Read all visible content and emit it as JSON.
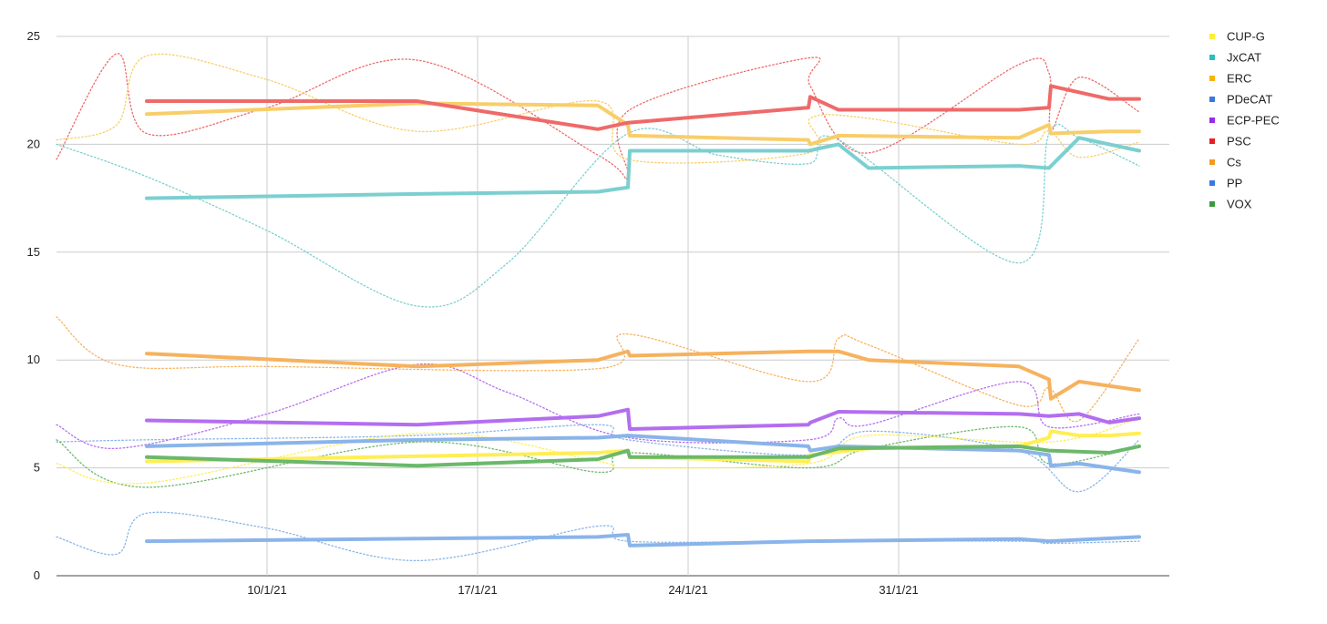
{
  "chart_data": {
    "type": "line",
    "title": "",
    "xlabel": "",
    "ylabel": "",
    "xlim": [
      "2021-01-03",
      "2021-02-09"
    ],
    "ylim": [
      0,
      25
    ],
    "yticks": [
      0,
      5,
      10,
      15,
      20,
      25
    ],
    "xticks": [
      {
        "date": "2021-01-10",
        "label": "10/1/21"
      },
      {
        "date": "2021-01-17",
        "label": "17/1/21"
      },
      {
        "date": "2021-01-24",
        "label": "24/1/21"
      },
      {
        "date": "2021-01-31",
        "label": "31/1/21"
      }
    ],
    "grid": true,
    "legend_position": "right",
    "series": [
      {
        "name": "CUP-G",
        "color": "#ffee55",
        "values": [
          [
            "2021-01-06",
            5.3
          ],
          [
            "2021-01-21",
            5.7
          ],
          [
            "2021-01-22",
            5.8
          ],
          [
            "2021-01-22",
            5.5
          ],
          [
            "2021-01-28",
            5.3
          ],
          [
            "2021-01-28",
            5.6
          ],
          [
            "2021-01-30",
            5.9
          ],
          [
            "2021-02-04",
            6.0
          ],
          [
            "2021-02-05",
            6.4
          ],
          [
            "2021-02-05",
            6.7
          ],
          [
            "2021-02-06",
            6.5
          ],
          [
            "2021-02-07",
            6.5
          ],
          [
            "2021-02-08",
            6.6
          ]
        ]
      },
      {
        "name": "JxCAT",
        "color": "#7ccfd0",
        "values": [
          [
            "2021-01-06",
            17.5
          ],
          [
            "2021-01-15",
            17.7
          ],
          [
            "2021-01-21",
            17.8
          ],
          [
            "2021-01-22",
            18.0
          ],
          [
            "2021-01-22",
            19.7
          ],
          [
            "2021-01-25",
            19.7
          ],
          [
            "2021-01-28",
            19.7
          ],
          [
            "2021-01-29",
            20.0
          ],
          [
            "2021-01-30",
            18.9
          ],
          [
            "2021-02-04",
            19.0
          ],
          [
            "2021-02-05",
            18.9
          ],
          [
            "2021-02-06",
            20.3
          ],
          [
            "2021-02-08",
            19.7
          ]
        ]
      },
      {
        "name": "ERC",
        "color": "#f8ce6a",
        "values": [
          [
            "2021-01-06",
            21.4
          ],
          [
            "2021-01-15",
            21.9
          ],
          [
            "2021-01-21",
            21.8
          ],
          [
            "2021-01-22",
            20.9
          ],
          [
            "2021-01-22",
            20.4
          ],
          [
            "2021-01-28",
            20.2
          ],
          [
            "2021-01-28",
            20.0
          ],
          [
            "2021-01-29",
            20.4
          ],
          [
            "2021-02-04",
            20.3
          ],
          [
            "2021-02-05",
            20.9
          ],
          [
            "2021-02-05",
            20.5
          ],
          [
            "2021-02-07",
            20.6
          ],
          [
            "2021-02-08",
            20.6
          ]
        ]
      },
      {
        "name": "PDeCAT",
        "color": "#8ab4ea",
        "values": [
          [
            "2021-01-06",
            1.6
          ],
          [
            "2021-01-21",
            1.8
          ],
          [
            "2021-01-22",
            1.9
          ],
          [
            "2021-01-22",
            1.4
          ],
          [
            "2021-01-28",
            1.6
          ],
          [
            "2021-02-04",
            1.7
          ],
          [
            "2021-02-05",
            1.6
          ],
          [
            "2021-02-08",
            1.8
          ]
        ]
      },
      {
        "name": "ECP-PEC",
        "color": "#b36ef0",
        "values": [
          [
            "2021-01-06",
            7.2
          ],
          [
            "2021-01-15",
            7.0
          ],
          [
            "2021-01-21",
            7.4
          ],
          [
            "2021-01-22",
            7.7
          ],
          [
            "2021-01-22",
            6.8
          ],
          [
            "2021-01-28",
            7.0
          ],
          [
            "2021-01-28",
            7.1
          ],
          [
            "2021-01-29",
            7.6
          ],
          [
            "2021-02-04",
            7.5
          ],
          [
            "2021-02-05",
            7.4
          ],
          [
            "2021-02-06",
            7.5
          ],
          [
            "2021-02-07",
            7.1
          ],
          [
            "2021-02-08",
            7.3
          ]
        ]
      },
      {
        "name": "PSC",
        "color": "#ee6a6a",
        "values": [
          [
            "2021-01-06",
            22.0
          ],
          [
            "2021-01-15",
            22.0
          ],
          [
            "2021-01-21",
            20.7
          ],
          [
            "2021-01-22",
            21.0
          ],
          [
            "2021-01-28",
            21.7
          ],
          [
            "2021-01-28",
            22.2
          ],
          [
            "2021-01-29",
            21.6
          ],
          [
            "2021-01-30",
            21.6
          ],
          [
            "2021-02-04",
            21.6
          ],
          [
            "2021-02-05",
            21.7
          ],
          [
            "2021-02-05",
            22.7
          ],
          [
            "2021-02-07",
            22.1
          ],
          [
            "2021-02-08",
            22.1
          ]
        ]
      },
      {
        "name": "Cs",
        "color": "#f6b25e",
        "values": [
          [
            "2021-01-06",
            10.3
          ],
          [
            "2021-01-15",
            9.7
          ],
          [
            "2021-01-21",
            10.0
          ],
          [
            "2021-01-22",
            10.4
          ],
          [
            "2021-01-22",
            10.2
          ],
          [
            "2021-01-28",
            10.4
          ],
          [
            "2021-01-29",
            10.4
          ],
          [
            "2021-01-30",
            10.0
          ],
          [
            "2021-02-04",
            9.7
          ],
          [
            "2021-02-05",
            9.1
          ],
          [
            "2021-02-05",
            8.2
          ],
          [
            "2021-02-06",
            9.0
          ],
          [
            "2021-02-08",
            8.6
          ]
        ]
      },
      {
        "name": "PP",
        "color": "#8ab4ea",
        "values": [
          [
            "2021-01-06",
            6.0
          ],
          [
            "2021-01-15",
            6.3
          ],
          [
            "2021-01-21",
            6.4
          ],
          [
            "2021-01-22",
            6.5
          ],
          [
            "2021-01-28",
            6.0
          ],
          [
            "2021-01-28",
            5.8
          ],
          [
            "2021-01-29",
            6.0
          ],
          [
            "2021-02-04",
            5.8
          ],
          [
            "2021-02-05",
            5.6
          ],
          [
            "2021-02-05",
            5.1
          ],
          [
            "2021-02-06",
            5.2
          ],
          [
            "2021-02-08",
            4.8
          ]
        ]
      },
      {
        "name": "VOX",
        "color": "#6bb86b",
        "values": [
          [
            "2021-01-06",
            5.5
          ],
          [
            "2021-01-15",
            5.1
          ],
          [
            "2021-01-21",
            5.4
          ],
          [
            "2021-01-22",
            5.8
          ],
          [
            "2021-01-22",
            5.5
          ],
          [
            "2021-01-28",
            5.5
          ],
          [
            "2021-01-29",
            5.9
          ],
          [
            "2021-02-04",
            6.0
          ],
          [
            "2021-02-05",
            5.8
          ],
          [
            "2021-02-07",
            5.7
          ],
          [
            "2021-02-08",
            6.0
          ]
        ]
      }
    ],
    "trendlines": [
      {
        "series": "PSC",
        "color": "#ee6a6a",
        "values": [
          [
            "2021-01-03",
            19.3
          ],
          [
            "2021-01-05",
            24.2
          ],
          [
            "2021-01-06",
            20.5
          ],
          [
            "2021-01-10",
            21.7
          ],
          [
            "2021-01-15",
            23.9
          ],
          [
            "2021-01-21",
            19.5
          ],
          [
            "2021-01-22",
            18.5
          ],
          [
            "2021-01-22",
            21.6
          ],
          [
            "2021-01-28",
            24.0
          ],
          [
            "2021-01-28",
            22.7
          ],
          [
            "2021-01-30",
            19.6
          ],
          [
            "2021-02-04",
            23.7
          ],
          [
            "2021-02-05",
            23.3
          ],
          [
            "2021-02-05",
            20.6
          ],
          [
            "2021-02-06",
            23.1
          ],
          [
            "2021-02-08",
            21.5
          ]
        ]
      },
      {
        "series": "ERC",
        "color": "#f8ce6a",
        "values": [
          [
            "2021-01-03",
            20.2
          ],
          [
            "2021-01-05",
            20.9
          ],
          [
            "2021-01-06",
            24.1
          ],
          [
            "2021-01-10",
            23.0
          ],
          [
            "2021-01-15",
            20.6
          ],
          [
            "2021-01-21",
            22.0
          ],
          [
            "2021-01-22",
            19.3
          ],
          [
            "2021-01-28",
            19.6
          ],
          [
            "2021-01-28",
            21.2
          ],
          [
            "2021-01-30",
            21.2
          ],
          [
            "2021-02-04",
            20.0
          ],
          [
            "2021-02-05",
            20.6
          ],
          [
            "2021-02-06",
            19.4
          ],
          [
            "2021-02-08",
            20.1
          ]
        ]
      },
      {
        "series": "JxCAT",
        "color": "#7ccfd0",
        "values": [
          [
            "2021-01-03",
            20.0
          ],
          [
            "2021-01-06",
            18.5
          ],
          [
            "2021-01-10",
            16.0
          ],
          [
            "2021-01-15",
            12.5
          ],
          [
            "2021-01-18",
            14.5
          ],
          [
            "2021-01-22",
            20.5
          ],
          [
            "2021-01-25",
            19.5
          ],
          [
            "2021-01-28",
            19.1
          ],
          [
            "2021-01-29",
            20.2
          ],
          [
            "2021-02-04",
            14.5
          ],
          [
            "2021-02-05",
            20.5
          ],
          [
            "2021-02-06",
            20.3
          ],
          [
            "2021-02-08",
            19.0
          ]
        ]
      },
      {
        "series": "Cs",
        "color": "#f6b25e",
        "values": [
          [
            "2021-01-03",
            12.0
          ],
          [
            "2021-01-05",
            9.8
          ],
          [
            "2021-01-10",
            9.7
          ],
          [
            "2021-01-21",
            9.6
          ],
          [
            "2021-01-22",
            11.2
          ],
          [
            "2021-01-28",
            9.0
          ],
          [
            "2021-01-29",
            11.0
          ],
          [
            "2021-01-30",
            10.7
          ],
          [
            "2021-02-04",
            7.9
          ],
          [
            "2021-02-05",
            8.7
          ],
          [
            "2021-02-06",
            7.2
          ],
          [
            "2021-02-08",
            11.0
          ]
        ]
      },
      {
        "series": "ECP-PEC",
        "color": "#b36ef0",
        "values": [
          [
            "2021-01-03",
            7.0
          ],
          [
            "2021-01-05",
            5.9
          ],
          [
            "2021-01-10",
            7.5
          ],
          [
            "2021-01-15",
            9.8
          ],
          [
            "2021-01-18",
            8.5
          ],
          [
            "2021-01-22",
            6.4
          ],
          [
            "2021-01-28",
            6.3
          ],
          [
            "2021-01-29",
            7.3
          ],
          [
            "2021-01-30",
            7.0
          ],
          [
            "2021-02-04",
            9.0
          ],
          [
            "2021-02-05",
            6.9
          ],
          [
            "2021-02-08",
            7.5
          ]
        ]
      },
      {
        "series": "PP",
        "color": "#8ab4ea",
        "values": [
          [
            "2021-01-03",
            6.2
          ],
          [
            "2021-01-06",
            6.3
          ],
          [
            "2021-01-15",
            6.5
          ],
          [
            "2021-01-21",
            7.0
          ],
          [
            "2021-01-22",
            6.3
          ],
          [
            "2021-01-28",
            5.6
          ],
          [
            "2021-01-30",
            6.7
          ],
          [
            "2021-02-04",
            5.8
          ],
          [
            "2021-02-06",
            3.9
          ],
          [
            "2021-02-08",
            6.3
          ]
        ]
      },
      {
        "series": "VOX",
        "color": "#6bb86b",
        "values": [
          [
            "2021-01-03",
            6.3
          ],
          [
            "2021-01-06",
            4.1
          ],
          [
            "2021-01-15",
            6.2
          ],
          [
            "2021-01-21",
            4.8
          ],
          [
            "2021-01-22",
            5.7
          ],
          [
            "2021-01-28",
            5.0
          ],
          [
            "2021-01-30",
            5.9
          ],
          [
            "2021-02-04",
            6.9
          ],
          [
            "2021-02-05",
            5.2
          ],
          [
            "2021-02-08",
            6.0
          ]
        ]
      },
      {
        "series": "CUP-G",
        "color": "#ffee55",
        "values": [
          [
            "2021-01-03",
            5.2
          ],
          [
            "2021-01-06",
            4.3
          ],
          [
            "2021-01-15",
            6.6
          ],
          [
            "2021-01-21",
            5.3
          ],
          [
            "2021-01-22",
            5.0
          ],
          [
            "2021-01-28",
            5.2
          ],
          [
            "2021-01-30",
            6.5
          ],
          [
            "2021-02-05",
            6.2
          ],
          [
            "2021-02-08",
            7.3
          ]
        ]
      },
      {
        "series": "PDeCAT",
        "color": "#8ab4ea",
        "values": [
          [
            "2021-01-03",
            1.8
          ],
          [
            "2021-01-05",
            1.0
          ],
          [
            "2021-01-06",
            2.9
          ],
          [
            "2021-01-10",
            2.2
          ],
          [
            "2021-01-15",
            0.7
          ],
          [
            "2021-01-21",
            2.3
          ],
          [
            "2021-01-22",
            1.6
          ],
          [
            "2021-01-28",
            1.6
          ],
          [
            "2021-02-04",
            1.6
          ],
          [
            "2021-02-05",
            1.5
          ],
          [
            "2021-02-08",
            1.6
          ]
        ]
      }
    ]
  }
}
